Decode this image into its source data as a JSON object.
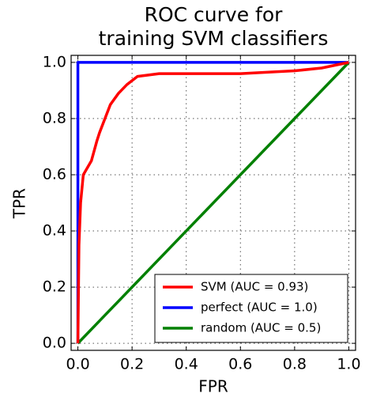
{
  "chart_data": {
    "type": "line",
    "title": [
      "ROC curve for",
      "training SVM classifiers"
    ],
    "x_label": "FPR",
    "y_label": "TPR",
    "xlim": [
      -0.025,
      1.025
    ],
    "ylim": [
      -0.025,
      1.025
    ],
    "xticks": [
      {
        "value": 0,
        "label": "0.0"
      },
      0.2,
      0.4,
      0.6,
      0.8,
      {
        "value": 1,
        "label": "1.0"
      }
    ],
    "yticks": [
      {
        "value": 0,
        "label": "0.0"
      },
      0.2,
      0.4,
      0.6,
      0.8,
      {
        "value": 1,
        "label": "1.0"
      }
    ],
    "grid": true,
    "legend": "lower right",
    "series": [
      {
        "name": "SVM (AUC = 0.93)",
        "color": "#ff0000",
        "x": [
          0,
          0.004,
          0.01,
          0.02,
          0.05,
          0.07,
          0.08,
          0.1,
          0.12,
          0.15,
          0.18,
          0.22,
          0.3,
          0.6,
          0.8,
          0.9,
          1
        ],
        "values": [
          0,
          0.35,
          0.5,
          0.6,
          0.65,
          0.72,
          0.75,
          0.8,
          0.85,
          0.89,
          0.92,
          0.95,
          0.96,
          0.96,
          0.97,
          0.98,
          1
        ]
      },
      {
        "name": "perfect (AUC = 1.0)",
        "color": "#0000ff",
        "x": [
          0,
          0,
          1
        ],
        "values": [
          0,
          1,
          1
        ]
      },
      {
        "name": "random (AUC = 0.5)",
        "color": "#008000",
        "x": [
          0,
          1
        ],
        "values": [
          0,
          1
        ]
      }
    ]
  }
}
